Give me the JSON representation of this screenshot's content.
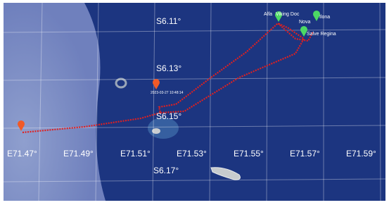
{
  "map": {
    "latitude_labels": [
      "S6.11°",
      "S6.13°",
      "S6.15°",
      "S6.17°"
    ],
    "longitude_labels": [
      "E71.47°",
      "E71.49°",
      "E71.51°",
      "E71.53°",
      "E71.55°",
      "E71.57°",
      "E71.59°"
    ],
    "markers": [
      {
        "label": "Alfa"
      },
      {
        "label": "Viking Doc"
      },
      {
        "label": "Ilona"
      },
      {
        "label": "Nova"
      },
      {
        "label": "Salve Regina"
      },
      {
        "label": "2023-03-27 10:48:14"
      }
    ]
  }
}
